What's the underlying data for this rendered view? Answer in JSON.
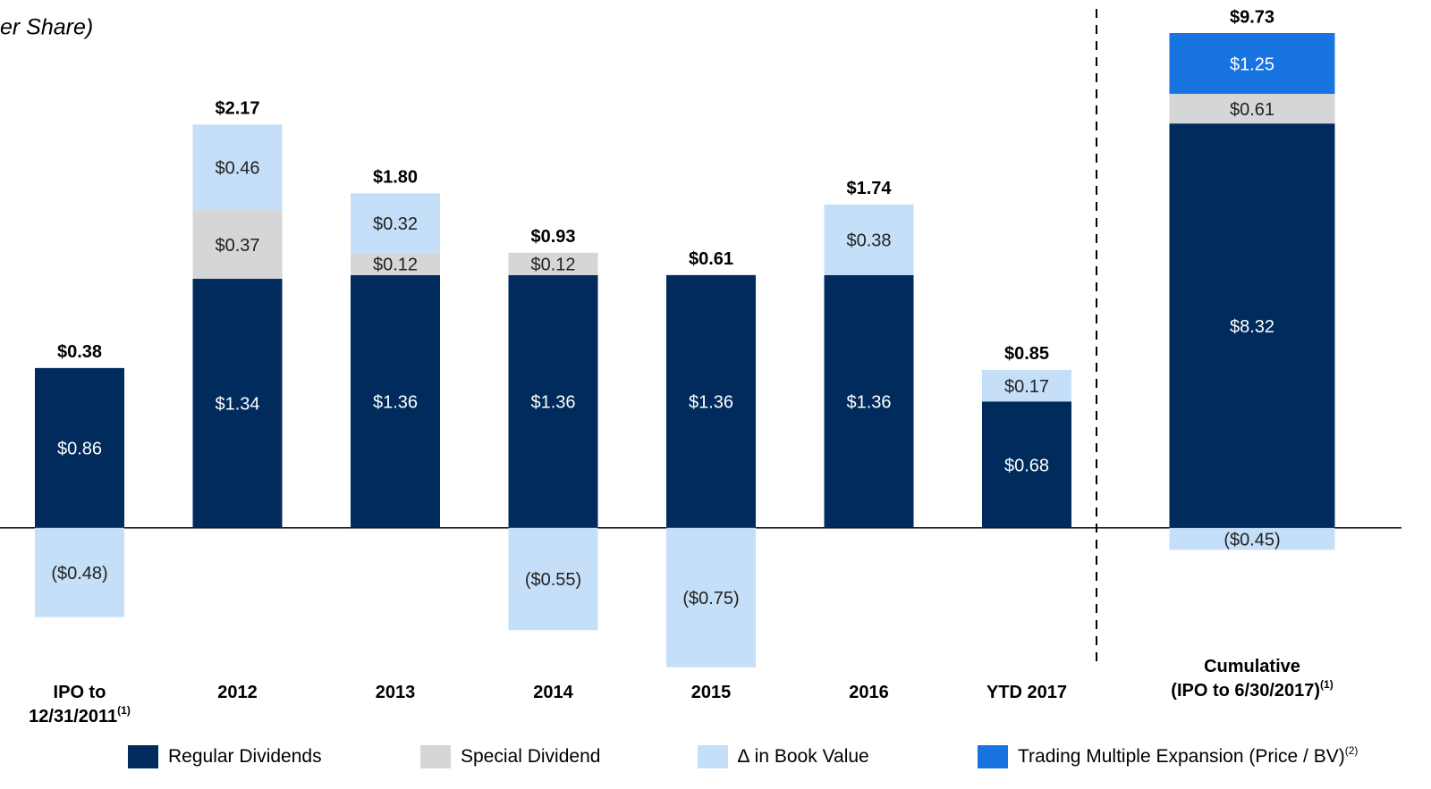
{
  "chart_data": {
    "type": "bar",
    "stacked": true,
    "title": "er Share)",
    "categories": [
      "IPO to\n12/31/2011",
      "2012",
      "2013",
      "2014",
      "2015",
      "2016",
      "YTD 2017",
      "Cumulative\n(IPO to 6/30/2017)"
    ],
    "category_notes": [
      "(1)",
      null,
      null,
      null,
      null,
      null,
      null,
      "(1)"
    ],
    "category_axis": [
      "y",
      "y",
      "y",
      "y",
      "y",
      "y",
      "y",
      "y2"
    ],
    "series": [
      {
        "name": "Regular Dividends",
        "color": "#002b5c",
        "label_color": "#ffffff",
        "values": [
          0.86,
          1.34,
          1.36,
          1.36,
          1.36,
          1.36,
          0.68,
          8.32
        ],
        "value_labels": [
          "$0.86",
          "$1.34",
          "$1.36",
          "$1.36",
          "$1.36",
          "$1.36",
          "$0.68",
          "$8.32"
        ]
      },
      {
        "name": "Special Dividend",
        "color": "#d4d6d8",
        "label_color": "#222222",
        "values": [
          null,
          0.37,
          0.12,
          0.12,
          null,
          null,
          null,
          0.61
        ],
        "value_labels": [
          null,
          "$0.37",
          "$0.12",
          "$0.12",
          null,
          null,
          null,
          "$0.61"
        ]
      },
      {
        "name": "∆ in Book Value",
        "color": "#c5dff8",
        "label_color": "#222222",
        "values": [
          -0.48,
          0.46,
          0.32,
          -0.55,
          -0.75,
          0.38,
          0.17,
          -0.45
        ],
        "value_labels": [
          "($0.48)",
          "$0.46",
          "$0.32",
          "($0.55)",
          "($0.75)",
          "$0.38",
          "$0.17",
          "($0.45)"
        ]
      },
      {
        "name": "Trading Multiple Expansion (Price / BV)",
        "note": "(2)",
        "color": "#1874e0",
        "label_color": "#ffffff",
        "values": [
          null,
          null,
          null,
          null,
          null,
          null,
          null,
          1.25
        ],
        "value_labels": [
          null,
          null,
          null,
          null,
          null,
          null,
          null,
          "$1.25"
        ]
      }
    ],
    "totals": [
      0.38,
      2.17,
      1.8,
      0.93,
      0.61,
      1.74,
      0.85,
      9.73
    ],
    "total_labels": [
      "$0.38",
      "$2.17",
      "$1.80",
      "$0.93",
      "$0.61",
      "$1.74",
      "$0.85",
      "$9.73"
    ],
    "ylim": [
      -0.78,
      2.84
    ],
    "y2lim": [
      -2.98,
      10.86
    ]
  }
}
